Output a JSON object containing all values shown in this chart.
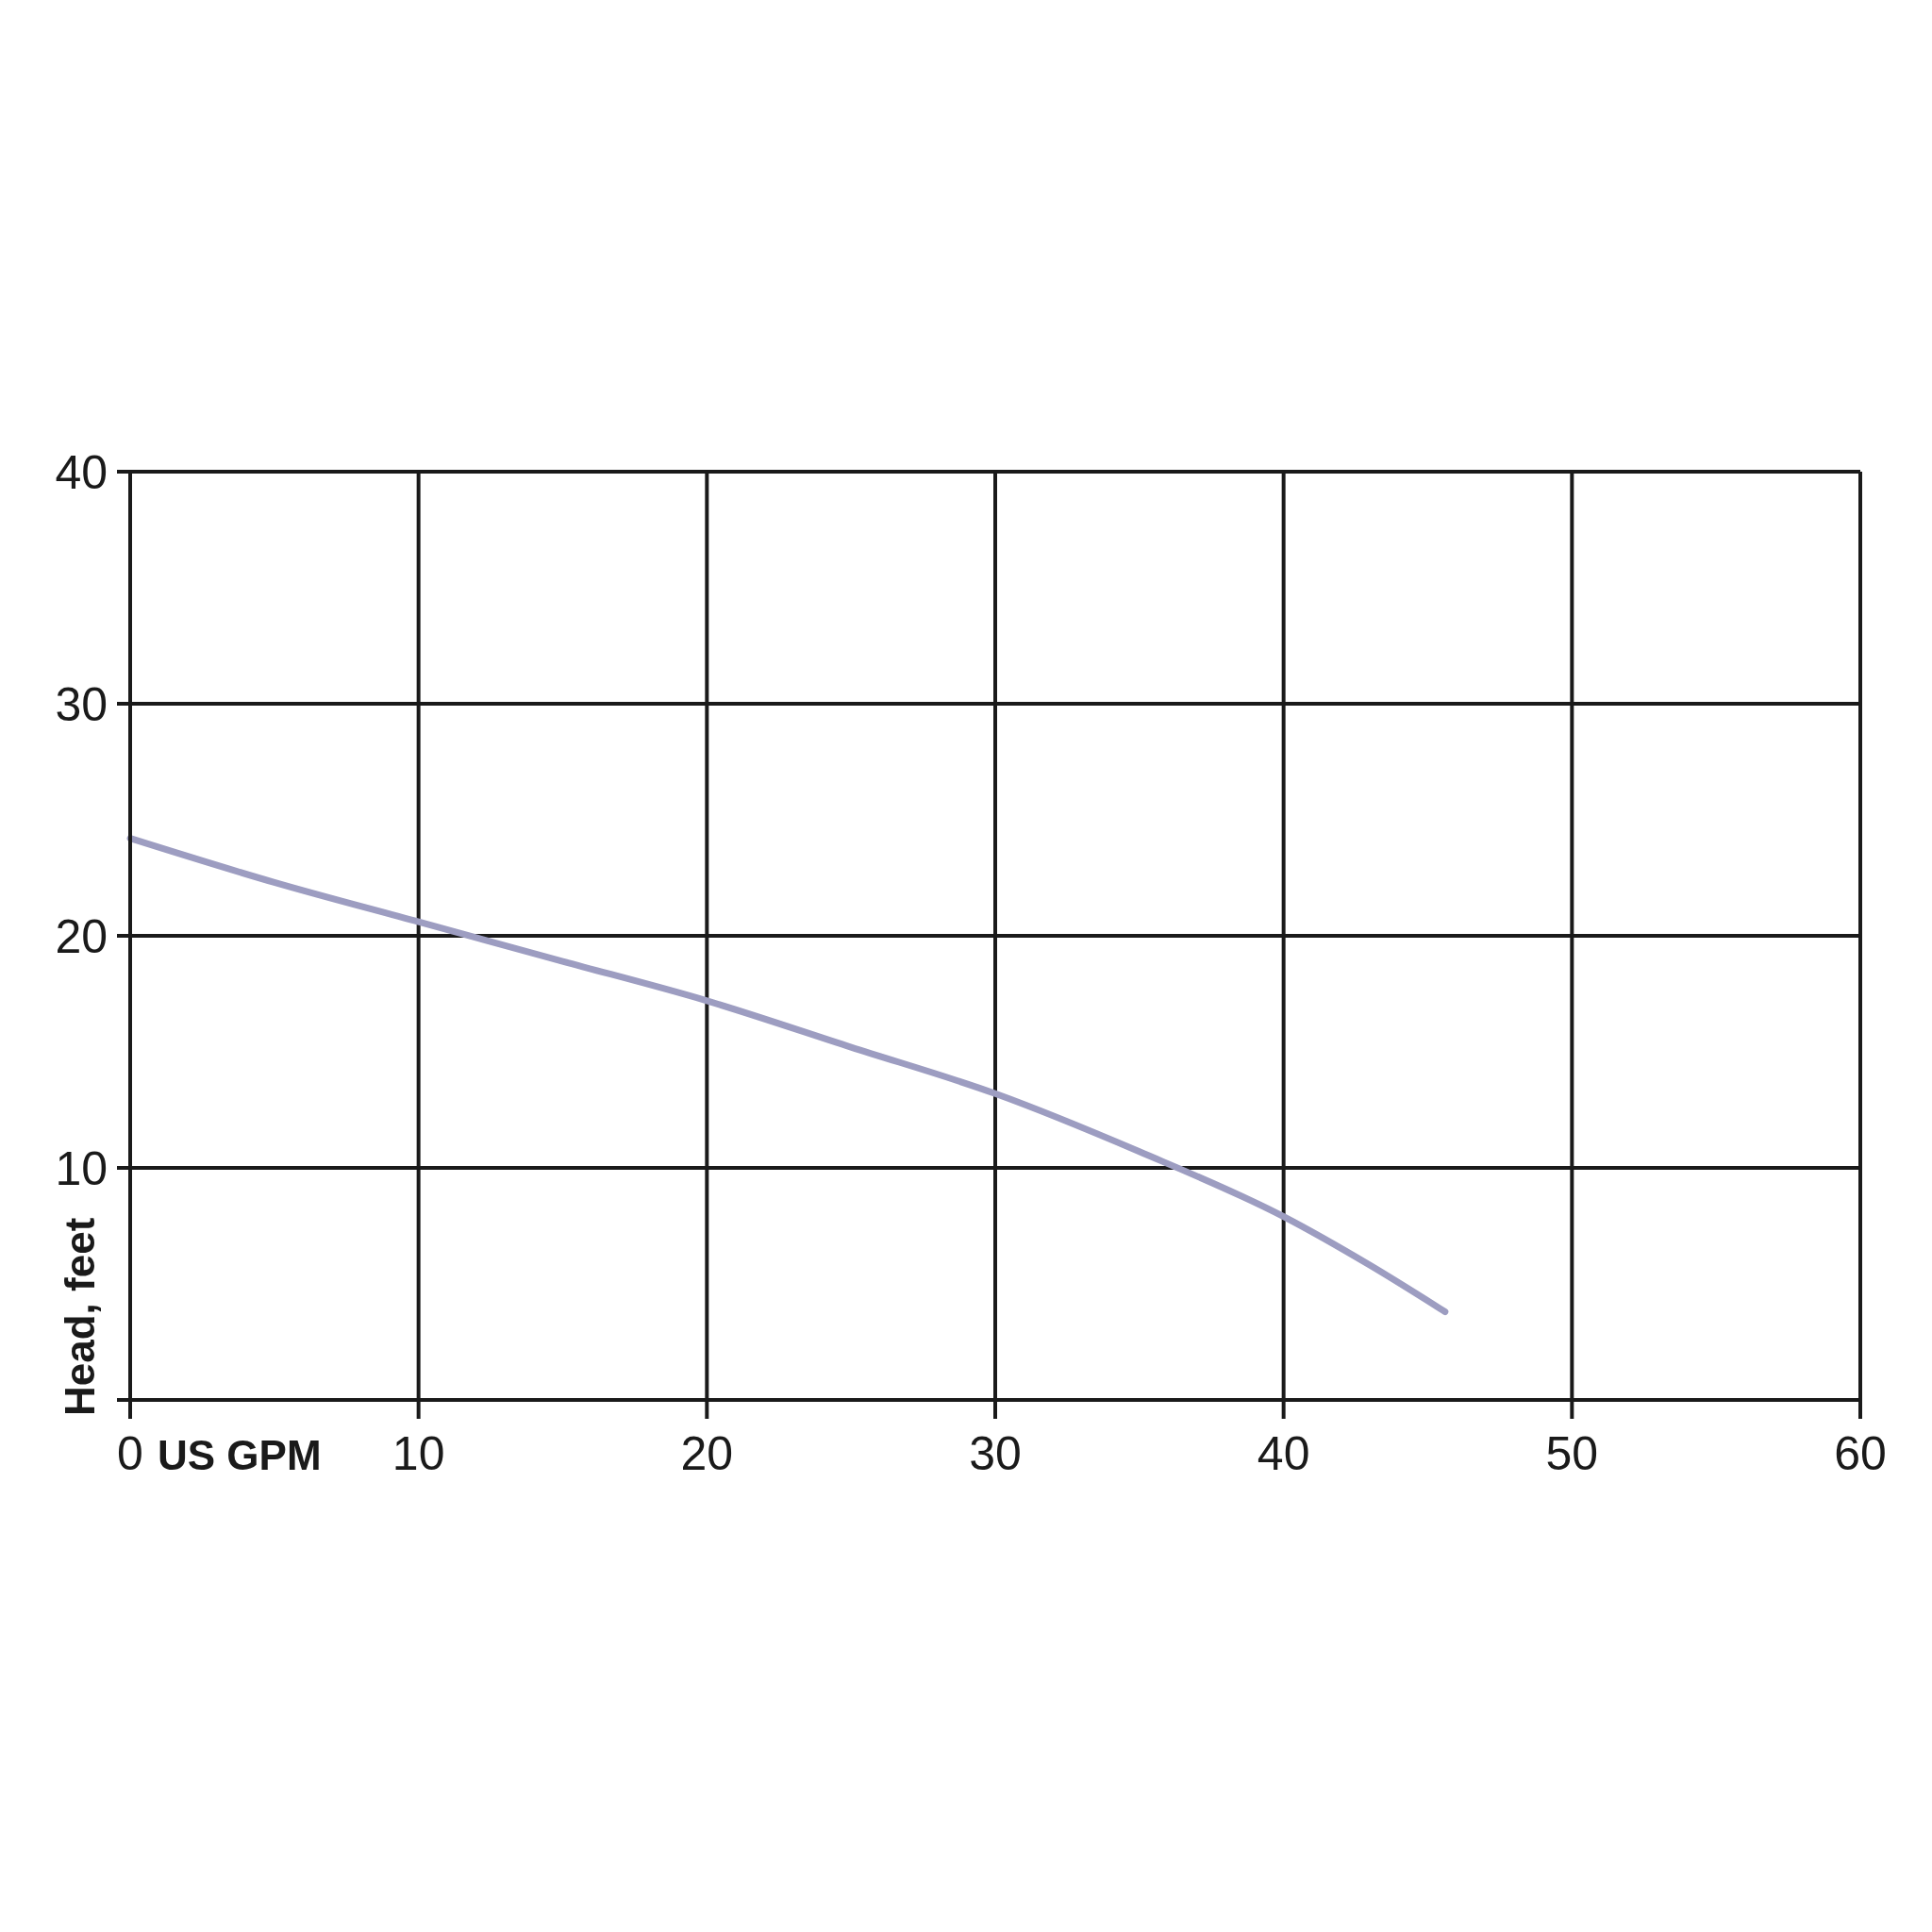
{
  "chart_data": {
    "type": "line",
    "xlabel": "US GPM",
    "ylabel": "Head, feet",
    "x": [
      0,
      5,
      10,
      15,
      20,
      25,
      30,
      35,
      40,
      43,
      45.6
    ],
    "series": [
      {
        "color": "#9d9dc1",
        "values": [
          24.2,
          22.3,
          20.6,
          18.9,
          17.2,
          15.2,
          13.2,
          10.7,
          7.9,
          5.8,
          3.8
        ]
      }
    ],
    "xlim": [
      0,
      60
    ],
    "ylim": [
      0,
      40
    ],
    "xticks": [
      0,
      10,
      20,
      30,
      40,
      50,
      60
    ],
    "yticks": [
      {
        "value": 0,
        "label": null
      },
      10,
      20,
      30,
      40
    ],
    "grid": true
  }
}
